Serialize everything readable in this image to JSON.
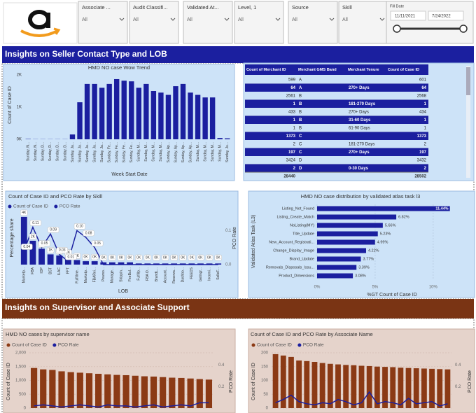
{
  "filters": [
    {
      "label": "Associate ...",
      "value": "All"
    },
    {
      "label": "Audit Classifi...",
      "value": "All"
    },
    {
      "label": "Validated At...",
      "value": "All"
    },
    {
      "label": "Level, 1",
      "value": "All"
    },
    {
      "label": "Source",
      "value": "All"
    },
    {
      "label": "Skill",
      "value": "All"
    }
  ],
  "date_filter": {
    "label": "Fill Date",
    "start": "11/11/2021",
    "end": "7/24/2022"
  },
  "sections": [
    "Insights on Seller Contact Type and LOB",
    "Insights on Supervisor and Associate Support"
  ],
  "table": {
    "columns": [
      "Count of Merchant ID",
      "Merchant GMS Band",
      "Merchant Tenure",
      "Count of Case ID"
    ],
    "rows": [
      [
        599,
        "A",
        null,
        601
      ],
      [
        64,
        "A",
        "270+ Days",
        64
      ],
      [
        2561,
        "B",
        null,
        2568
      ],
      [
        1,
        "B",
        "181-270 Days",
        1
      ],
      [
        433,
        "B",
        "270+ Days",
        434
      ],
      [
        1,
        "B",
        "31-60 Days",
        1
      ],
      [
        1,
        "B",
        "61-90 Days",
        1
      ],
      [
        1373,
        "C",
        null,
        1373
      ],
      [
        2,
        "C",
        "181-270 Days",
        2
      ],
      [
        197,
        "C",
        "270+ Days",
        197
      ],
      [
        3424,
        "D",
        null,
        3432
      ],
      [
        2,
        "D",
        "0-30 Days",
        2
      ]
    ],
    "totals": [
      28440,
      null,
      null,
      28502
    ]
  },
  "chart_data": [
    {
      "type": "bar",
      "title": "HMD NO case Wow Trend",
      "x_label": "Week Start Date",
      "y_label": "Count of Case ID",
      "color": "#1b1f9f",
      "categories": [
        "Sunday, N...",
        "Sunday, N...",
        "Sunday, D...",
        "Sunday, D...",
        "Sunday, D...",
        "Sunday, D...",
        "Sunday, Ja...",
        "Sunday, Ja...",
        "Sunday, Ja...",
        "Sunday, Ja...",
        "Sunday, Ja...",
        "Sunday, Fe...",
        "Sunday, Fe...",
        "Sunday, Fe...",
        "Sunday, Fe...",
        "Sunday, M...",
        "Sunday, M...",
        "Sunday, M...",
        "Sunday, M...",
        "Sunday, Ap...",
        "Sunday, Ap...",
        "Sunday, Ap...",
        "Sunday, Ap...",
        "Sunday, M...",
        "Sunday, M...",
        "Sunday, M...",
        "Sunday, M...",
        "Sunday, Ju..."
      ],
      "values": [
        10,
        5,
        5,
        5,
        5,
        5,
        150,
        1150,
        1720,
        1720,
        1600,
        1720,
        1870,
        1820,
        1800,
        1600,
        1720,
        1500,
        1450,
        1380,
        1650,
        1720,
        1450,
        1380,
        1300,
        1300,
        40,
        30
      ],
      "ylim": [
        0,
        2100
      ],
      "yticks": [
        {
          "value": 0,
          "label": "0K"
        },
        {
          "value": 1000,
          "label": "1K"
        },
        {
          "value": 2000,
          "label": "2K"
        }
      ]
    },
    {
      "type": "combo",
      "title": "Count of Case ID and PCO Rate by Skill",
      "x_label": "LOB",
      "y_label": "Percentage share",
      "y2_label": "PCO Rate",
      "categories": [
        "Marketp...",
        "FBA",
        "IOP",
        "BST",
        "ILAC",
        "FFT",
        "Fulfillme...",
        "Marketp...",
        "FBARei...",
        "Pearso...",
        "Manage...",
        "Shippin...",
        "FeeBul...",
        "Fulfillp...",
        "FBA O...",
        "BrandL...",
        "Account...",
        "Reserva...",
        "Dashbo...",
        "FEEDS",
        "Getingr...",
        "Incomi...",
        "SelleF..."
      ],
      "series": [
        {
          "name": "Count of Case ID",
          "color": "#1b1f9f",
          "values": [
            4200,
            2100,
            1400,
            900,
            800,
            700,
            400,
            300,
            300,
            200,
            200,
            200,
            200,
            100,
            100,
            100,
            100,
            100,
            100,
            100,
            100,
            100,
            100
          ],
          "value_labels": [
            "4K",
            "2K",
            "1K",
            "1K",
            "1K",
            "1K",
            "0K",
            "0K",
            "0K",
            "0K",
            "0K",
            "0K",
            "0K",
            "0K",
            "0K",
            "0K",
            "0K",
            "0K",
            "0K",
            "0K",
            "0K",
            "0K",
            "0K"
          ]
        },
        {
          "name": "PCO Rate",
          "color": "#1b1f9f",
          "axis": "y2",
          "values": [
            0.04,
            0.11,
            0.05,
            0.09,
            0.03,
            0.01,
            0.1,
            0.08,
            0.05,
            0,
            0,
            0,
            0,
            0,
            0,
            0,
            0,
            0,
            0,
            0,
            0,
            0,
            0
          ],
          "value_labels": [
            "0.04",
            "0.11",
            "0.05",
            "0.09",
            "0.03",
            "0.01",
            "0.10",
            "0.08",
            "0.05",
            null,
            null,
            null,
            null,
            null,
            null,
            null,
            null,
            null,
            null,
            null,
            null,
            null,
            null
          ]
        }
      ],
      "ylim": [
        0,
        4500
      ],
      "y2lim": [
        0,
        0.15
      ],
      "y2ticks": [
        {
          "value": 0,
          "label": "0.0"
        },
        0.1
      ]
    },
    {
      "type": "hbar",
      "title": "HMD NO case distribution by validated atlas task l3",
      "x_label": "%GT Count of Case ID",
      "y_label": "Validated Atlas Task (L3)",
      "color": "#1b1f9f",
      "categories": [
        "Listing_Not_Found",
        "Listing_Create_Match",
        "NoListing(MY)",
        "Title_Update",
        "New_Account_Registrati...",
        "Change_Display_Image",
        "Brand_Update",
        "Removals_Disposals_Issu...",
        "Product_Dimensions"
      ],
      "values": [
        11.44,
        6.82,
        5.66,
        5.23,
        4.99,
        4.22,
        3.77,
        3.39,
        3.08
      ],
      "value_labels": [
        "11.44%",
        "6.82%",
        "5.66%",
        "5.23%",
        "4.99%",
        "4.22%",
        "3.77%",
        "3.39%",
        "3.08%"
      ],
      "xlim": [
        0,
        12
      ],
      "xticks": [
        {
          "value": 0,
          "label": "0%"
        },
        {
          "value": 5,
          "label": "5%"
        },
        {
          "value": 10,
          "label": "10%"
        }
      ]
    },
    {
      "type": "combo",
      "title": "HMD NO cases by supervisor name",
      "y_label": "Count of Case ID",
      "y2_label": "PCO Rate",
      "grid": true,
      "series": [
        {
          "name": "Count of Case ID",
          "color": "#8b3a15",
          "values": [
            1450,
            1400,
            1380,
            1330,
            1300,
            1280,
            1260,
            1240,
            1220,
            1200,
            1190,
            1170,
            1150,
            1140,
            1120,
            1100,
            1090,
            1070,
            1050,
            1030
          ]
        },
        {
          "name": "PCO Rate",
          "color": "#1b1f9f",
          "axis": "y2",
          "values": [
            0.02,
            0.03,
            0.02,
            0.01,
            0.02,
            0.03,
            0.02,
            0.01,
            0.03,
            0.02,
            0.02,
            0.01,
            0.02,
            0.03,
            0.01,
            0.02,
            0.03,
            0.02,
            0.05,
            0.05
          ]
        }
      ],
      "ylim": [
        0,
        2100
      ],
      "yticks": [
        0,
        500,
        {
          "value": 1000,
          "label": "1,000"
        },
        {
          "value": 1500,
          "label": "1,500"
        },
        {
          "value": 2000,
          "label": "2,000"
        }
      ],
      "y2lim": [
        0,
        0.54
      ],
      "y2ticks": [
        0.2,
        0.4
      ]
    },
    {
      "type": "combo",
      "title": "Count of Case ID and PCO Rate by Associate Name",
      "y_label": "Count of Case ID",
      "y2_label": "PCO Rate",
      "grid": true,
      "series": [
        {
          "name": "Count of Case ID",
          "color": "#8b3a15",
          "values": [
            195,
            190,
            185,
            172,
            170,
            167,
            163,
            160,
            158,
            156,
            155,
            153,
            152,
            150,
            149,
            148,
            146,
            145,
            144,
            143,
            142,
            141,
            140
          ]
        },
        {
          "name": "PCO Rate",
          "color": "#1b1f9f",
          "axis": "y2",
          "values": [
            0.05,
            0.08,
            0.12,
            0.06,
            0.04,
            0.03,
            0.05,
            0.04,
            0.08,
            0.06,
            0.03,
            0.05,
            0.15,
            0.04,
            0.06,
            0.05,
            0.03,
            0.09,
            0.04,
            0.05,
            0.06,
            0.02,
            0.04
          ]
        }
      ],
      "ylim": [
        0,
        210
      ],
      "yticks": [
        0,
        50,
        100,
        150,
        200
      ],
      "y2lim": [
        0,
        0.54
      ],
      "y2ticks": [
        0.2,
        0.4
      ]
    }
  ]
}
